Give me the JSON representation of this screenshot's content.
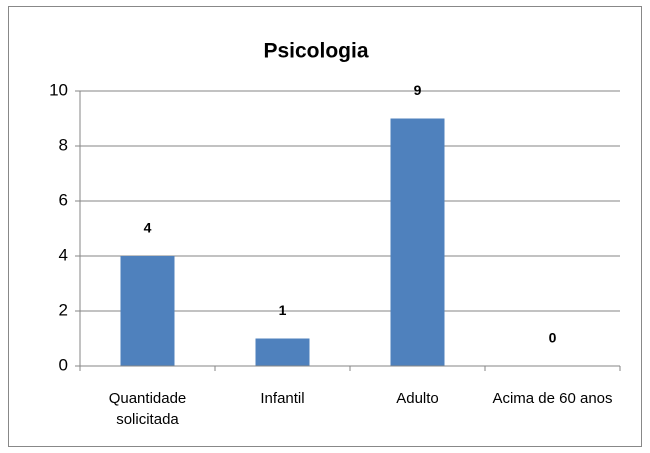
{
  "chart_data": {
    "type": "bar",
    "title": "Psicologia",
    "categories": [
      "Quantidade solicitada",
      "Infantil",
      "Adulto",
      "Acima de 60 anos"
    ],
    "values": [
      4,
      1,
      9,
      0
    ],
    "color": "#4f81bd",
    "ylim": [
      0,
      10
    ],
    "yticks": [
      0,
      2,
      4,
      6,
      8,
      10
    ],
    "grid": true
  }
}
